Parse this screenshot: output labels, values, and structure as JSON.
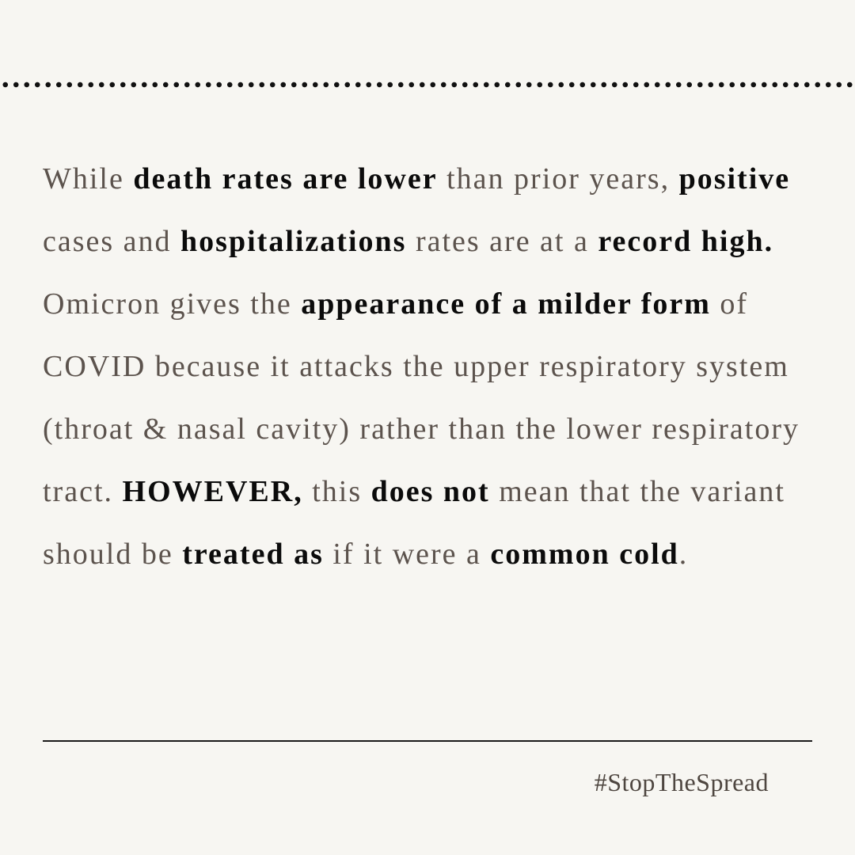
{
  "paragraph": [
    {
      "text": "While ",
      "bold": false
    },
    {
      "text": "death rates are lower",
      "bold": true
    },
    {
      "text": " than prior years, ",
      "bold": false
    },
    {
      "text": "positive",
      "bold": true
    },
    {
      "text": " cases and ",
      "bold": false
    },
    {
      "text": "hospitalizations",
      "bold": true
    },
    {
      "text": " rates are at a ",
      "bold": false
    },
    {
      "text": "record high.",
      "bold": true
    },
    {
      "text": " Omicron gives the ",
      "bold": false
    },
    {
      "text": "appearance of a milder form",
      "bold": true
    },
    {
      "text": " of COVID because it attacks the upper respiratory system (throat & nasal cavity) rather than the lower respiratory tract. ",
      "bold": false
    },
    {
      "text": "HOWEVER,",
      "bold": true
    },
    {
      "text": " this ",
      "bold": false
    },
    {
      "text": "does not",
      "bold": true
    },
    {
      "text": " mean that the variant should be ",
      "bold": false
    },
    {
      "text": "treated as",
      "bold": true
    },
    {
      "text": " if it were a ",
      "bold": false
    },
    {
      "text": "common cold",
      "bold": true
    },
    {
      "text": ".",
      "bold": false
    }
  ],
  "hashtag": "#StopTheSpread",
  "colors": {
    "background": "#f7f6f2",
    "body_text": "#5c534d",
    "emphasis_text": "#0b0b0b",
    "rules": "#1a1a1a"
  }
}
